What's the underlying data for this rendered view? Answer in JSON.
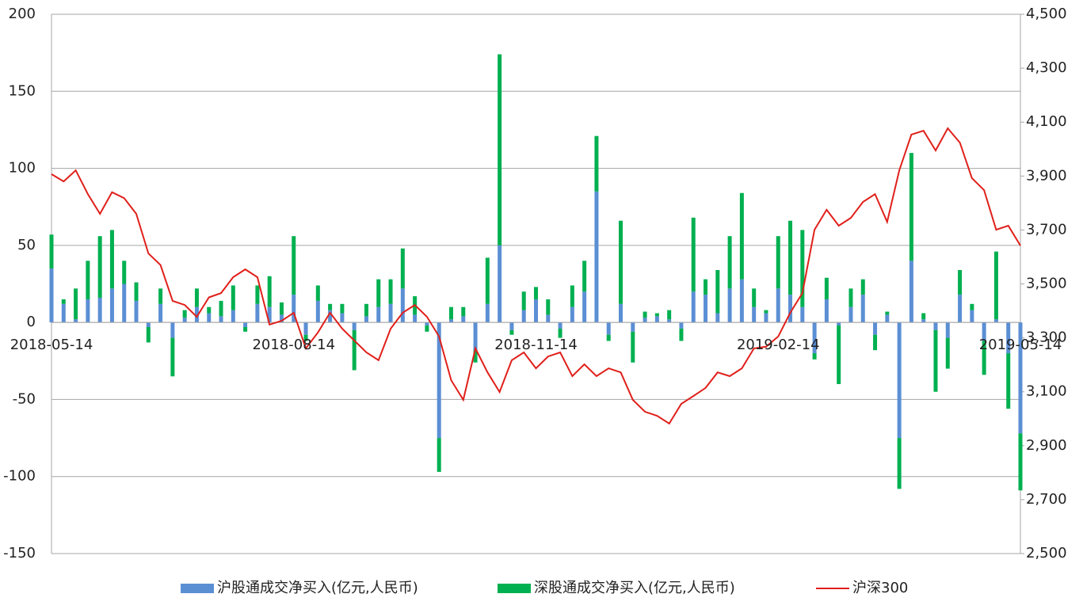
{
  "chart_data": {
    "type": "bar",
    "stacked": true,
    "categories": [
      "2018-05-14",
      null,
      null,
      null,
      null,
      null,
      null,
      null,
      null,
      null,
      null,
      null,
      null,
      null,
      null,
      null,
      null,
      null,
      null,
      null,
      "2018-08-14",
      null,
      null,
      null,
      null,
      null,
      null,
      null,
      null,
      null,
      null,
      null,
      null,
      null,
      null,
      null,
      null,
      null,
      null,
      null,
      "2018-11-14",
      null,
      null,
      null,
      null,
      null,
      null,
      null,
      null,
      null,
      null,
      null,
      null,
      null,
      null,
      null,
      null,
      null,
      null,
      null,
      "2019-02-14",
      null,
      null,
      null,
      null,
      null,
      null,
      null,
      null,
      null,
      null,
      null,
      null,
      null,
      null,
      null,
      null,
      null,
      null,
      null,
      "2019-05-14"
    ],
    "series": [
      {
        "name": "沪股通成交净买入(亿元,人民币)",
        "type": "bar",
        "color": "#5b8fd4",
        "values": [
          35,
          12,
          2,
          15,
          16,
          22,
          25,
          14,
          -3,
          12,
          -10,
          3,
          10,
          6,
          4,
          8,
          -3,
          12,
          10,
          5,
          18,
          -8,
          14,
          8,
          6,
          -5,
          4,
          10,
          12,
          22,
          5,
          -2,
          -75,
          2,
          4,
          -18,
          12,
          50,
          -5,
          8,
          15,
          5,
          -4,
          10,
          20,
          85,
          -8,
          12,
          -6,
          3,
          4,
          2,
          -4,
          20,
          18,
          6,
          22,
          28,
          10,
          6,
          22,
          18,
          10,
          -20,
          15,
          -2,
          10,
          18,
          -8,
          5,
          -75,
          40,
          2,
          -5,
          -10,
          18,
          8,
          -12,
          2,
          -20,
          -72
        ]
      },
      {
        "name": "深股通成交净买入(亿元,人民币)",
        "type": "bar",
        "color": "#00b050",
        "values": [
          22,
          3,
          20,
          25,
          40,
          38,
          15,
          12,
          -10,
          10,
          -25,
          5,
          12,
          4,
          10,
          16,
          -3,
          12,
          20,
          8,
          38,
          -4,
          10,
          4,
          6,
          -26,
          8,
          18,
          16,
          26,
          12,
          -4,
          -22,
          8,
          6,
          -8,
          30,
          124,
          -3,
          12,
          8,
          10,
          -6,
          14,
          20,
          36,
          -4,
          54,
          -20,
          4,
          2,
          6,
          -8,
          48,
          10,
          28,
          34,
          56,
          12,
          2,
          34,
          48,
          50,
          -4,
          14,
          -38,
          12,
          10,
          -10,
          2,
          -33,
          70,
          4,
          -40,
          -20,
          16,
          4,
          -22,
          44,
          -36,
          -37
        ]
      },
      {
        "name": "沪深300",
        "type": "line",
        "axis": "y2",
        "color": "#e0201b",
        "values": [
          3907,
          3880,
          3921,
          3833,
          3760,
          3840,
          3818,
          3760,
          3613,
          3570,
          3437,
          3422,
          3378,
          3450,
          3466,
          3525,
          3554,
          3525,
          3349,
          3363,
          3393,
          3261,
          3320,
          3393,
          3334,
          3290,
          3246,
          3217,
          3334,
          3393,
          3422,
          3378,
          3305,
          3143,
          3070,
          3261,
          3172,
          3099,
          3217,
          3246,
          3187,
          3231,
          3246,
          3158,
          3202,
          3158,
          3187,
          3172,
          3070,
          3026,
          3011,
          2982,
          3055,
          3084,
          3114,
          3172,
          3158,
          3187,
          3261,
          3267,
          3305,
          3393,
          3466,
          3701,
          3775,
          3716,
          3745,
          3804,
          3833,
          3730,
          3921,
          4054,
          4068,
          3995,
          4077,
          4024,
          3892,
          3848,
          3701,
          3716,
          3642
        ]
      }
    ],
    "ylim": [
      -150,
      200
    ],
    "yticks": [
      -150,
      -100,
      -50,
      0,
      50,
      100,
      150,
      200
    ],
    "y2lim": [
      2500,
      4500
    ],
    "y2ticks": [
      {
        "value": 2500,
        "label": "2,500"
      },
      {
        "value": 2700,
        "label": "2,700"
      },
      {
        "value": 2900,
        "label": "2,900"
      },
      {
        "value": 3100,
        "label": "3,100"
      },
      {
        "value": 3300,
        "label": "3,300"
      },
      {
        "value": 3500,
        "label": "3,500"
      },
      {
        "value": 3700,
        "label": "3,700"
      },
      {
        "value": 3900,
        "label": "3,900"
      },
      {
        "value": 4100,
        "label": "4,100"
      },
      {
        "value": 4300,
        "label": "4,300"
      },
      {
        "value": 4500,
        "label": "4,500"
      }
    ],
    "grid": true,
    "legend": "bottom"
  }
}
